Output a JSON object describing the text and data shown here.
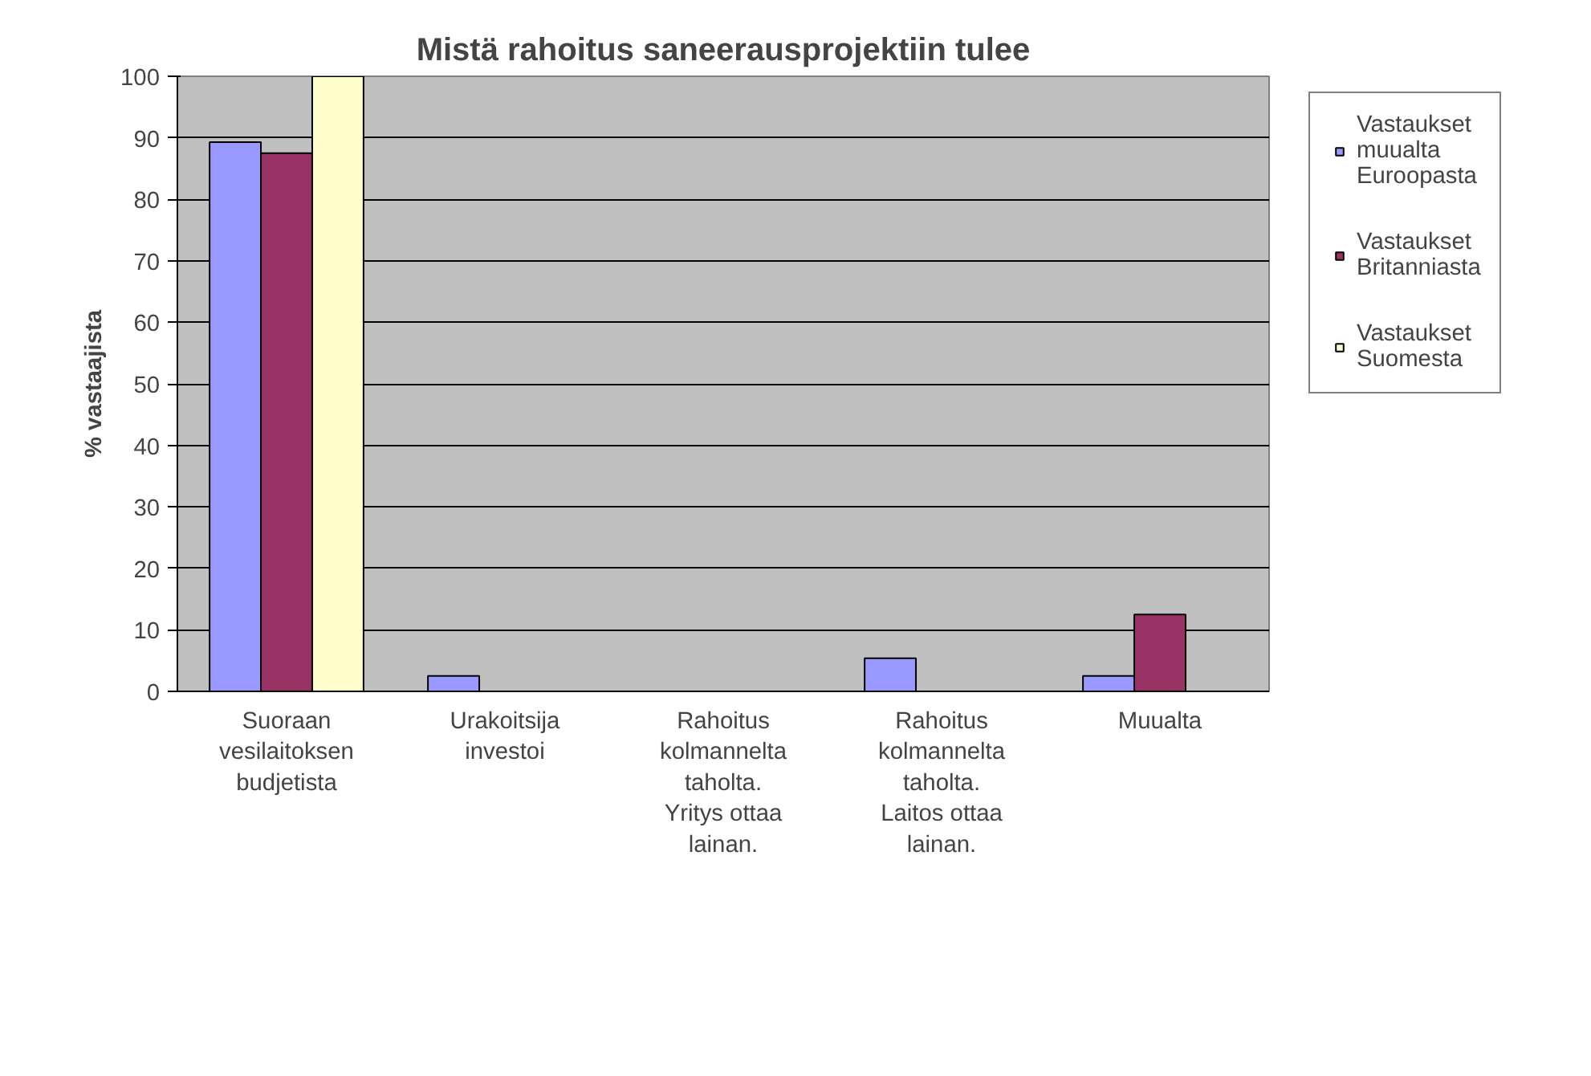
{
  "chart_data": {
    "type": "bar",
    "title": "Mistä rahoitus saneerausprojektiin tulee",
    "ylabel": "% vastaajista",
    "categories": [
      "Suoraan vesilaitoksen budjetista",
      "Urakoitsija investoi",
      "Rahoitus kolmannelta taholta. Yritys ottaa lainan.",
      "Rahoitus kolmannelta taholta. Laitos ottaa lainan.",
      "Muualta"
    ],
    "series": [
      {
        "name": "Vastaukset muualta Euroopasta",
        "color": "#9999ff",
        "values": [
          89.3,
          2.5,
          0,
          5.4,
          2.5
        ]
      },
      {
        "name": "Vastaukset Britanniasta",
        "color": "#993366",
        "values": [
          87.5,
          0,
          0,
          0,
          12.5
        ]
      },
      {
        "name": "Vastaukset Suomesta",
        "color": "#ffffcc",
        "values": [
          100,
          0,
          0,
          0,
          0
        ]
      }
    ],
    "ylim": [
      0,
      100
    ],
    "yticks": [
      0,
      10,
      20,
      30,
      40,
      50,
      60,
      70,
      80,
      90,
      100
    ],
    "grid": "y",
    "legend": "right"
  }
}
